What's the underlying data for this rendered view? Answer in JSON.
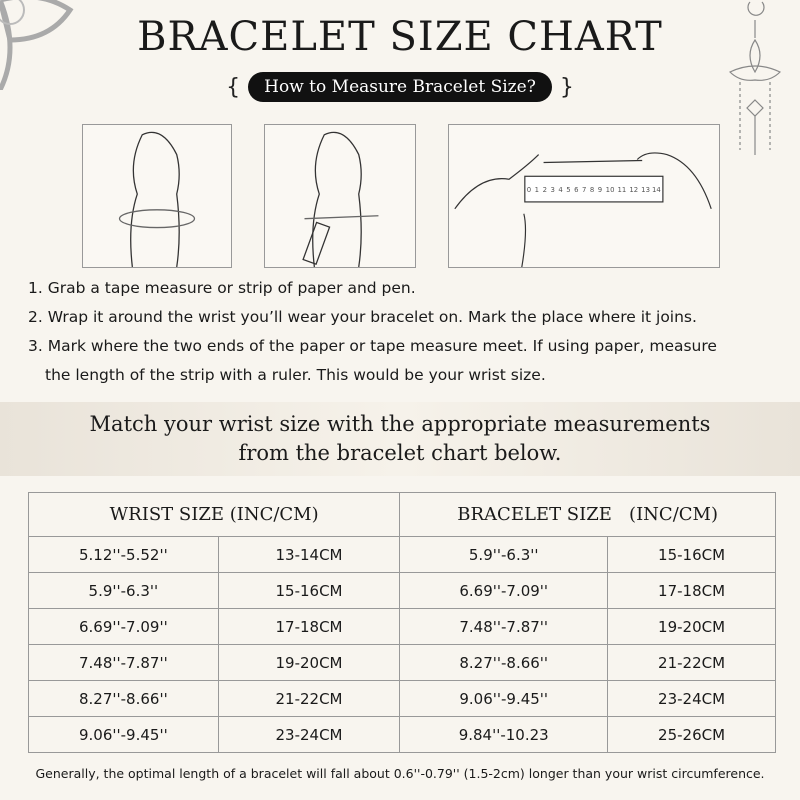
{
  "title": "BRACELET SIZE CHART",
  "subtitle": "How to Measure Bracelet Size?",
  "ruler_numbers": [
    "0",
    "1",
    "2",
    "3",
    "4",
    "5",
    "6",
    "7",
    "8",
    "9",
    "10",
    "11",
    "12",
    "13",
    "14"
  ],
  "steps": [
    "1. Grab a tape measure or strip of paper and pen.",
    "2. Wrap it around the wrist you’ll wear your bracelet on. Mark the place where it joins.",
    "3. Mark where the two ends of the paper or tape measure meet. If using paper, measure",
    "the length of the strip with a ruler. This would be your wrist size."
  ],
  "match_text": [
    "Match your wrist size with the appropriate measurements",
    "from the bracelet chart below."
  ],
  "table": {
    "headers": [
      "WRIST SIZE (INC/CM)",
      "BRACELET SIZE   (INC/CM)"
    ],
    "rows": [
      [
        "5.12''-5.52''",
        "13-14CM",
        "5.9''-6.3''",
        "15-16CM"
      ],
      [
        "5.9''-6.3''",
        "15-16CM",
        "6.69''-7.09''",
        "17-18CM"
      ],
      [
        "6.69''-7.09''",
        "17-18CM",
        "7.48''-7.87''",
        "19-20CM"
      ],
      [
        "7.48''-7.87''",
        "19-20CM",
        "8.27''-8.66''",
        "21-22CM"
      ],
      [
        "8.27''-8.66''",
        "21-22CM",
        "9.06''-9.45''",
        "23-24CM"
      ],
      [
        "9.06''-9.45''",
        "23-24CM",
        "9.84''-10.23",
        "25-26CM"
      ]
    ]
  },
  "note": "Generally, the optimal length of a bracelet will fall about 0.6''-0.79'' (1.5-2cm) longer than your wrist circumference."
}
